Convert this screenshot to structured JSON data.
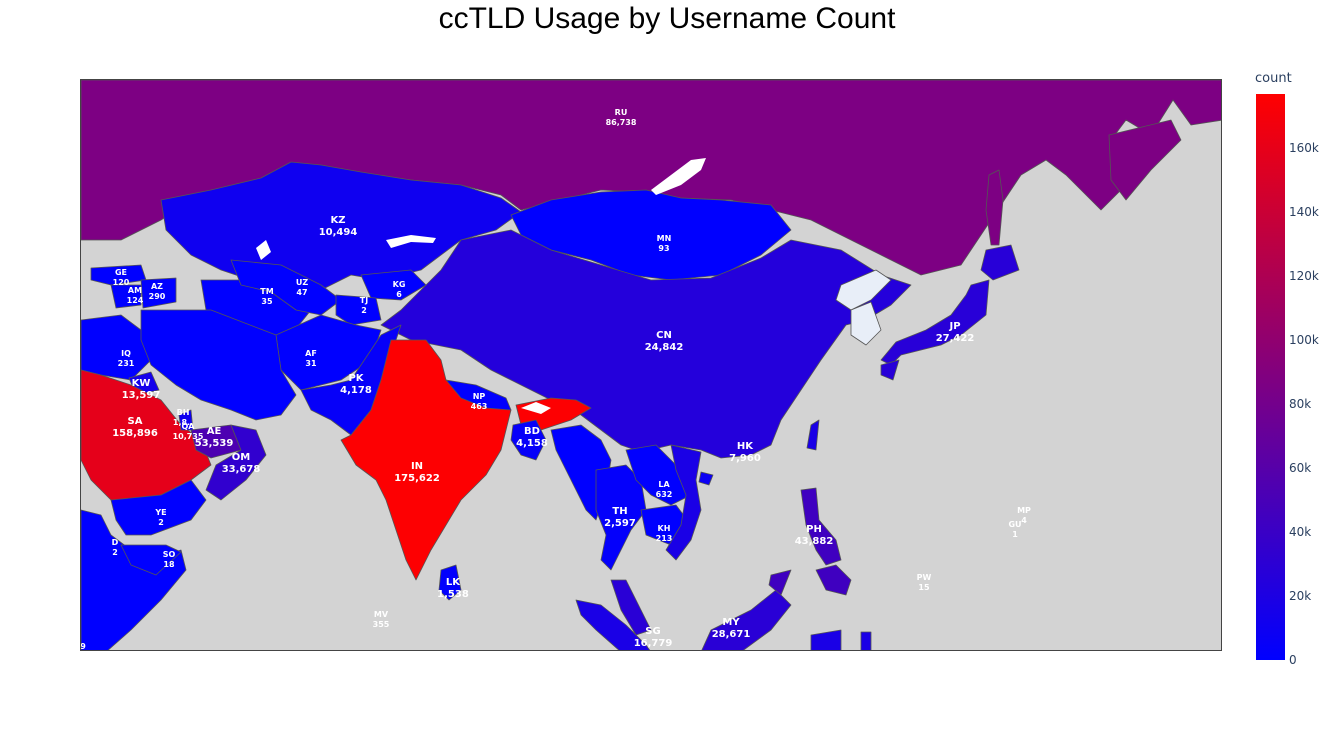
{
  "title": "ccTLD Usage by Username Count",
  "colorbar": {
    "title": "count",
    "ticks": [
      {
        "label": "160k",
        "value": 160000
      },
      {
        "label": "140k",
        "value": 140000
      },
      {
        "label": "120k",
        "value": 120000
      },
      {
        "label": "100k",
        "value": 100000
      },
      {
        "label": "80k",
        "value": 80000
      },
      {
        "label": "60k",
        "value": 60000
      },
      {
        "label": "40k",
        "value": 40000
      },
      {
        "label": "20k",
        "value": 20000
      },
      {
        "label": "0",
        "value": 0
      }
    ],
    "max": 177000,
    "colors": {
      "low": "#0000ff",
      "mid": "#800080",
      "high": "#ff0000"
    }
  },
  "map_colors": {
    "ocean": "#d3d3d3",
    "nodata": "#e8eef8",
    "border": "#555555"
  },
  "countries": [
    {
      "code": "RU",
      "count": "86,738",
      "value": 86738
    },
    {
      "code": "KZ",
      "count": "10,494",
      "value": 10494
    },
    {
      "code": "MN",
      "count": "93",
      "value": 93
    },
    {
      "code": "GE",
      "count": "120",
      "value": 120
    },
    {
      "code": "AM",
      "count": "124",
      "value": 124
    },
    {
      "code": "AZ",
      "count": "290",
      "value": 290
    },
    {
      "code": "TM",
      "count": "35",
      "value": 35
    },
    {
      "code": "UZ",
      "count": "47",
      "value": 47
    },
    {
      "code": "KG",
      "count": "6",
      "value": 6
    },
    {
      "code": "TJ",
      "count": "2",
      "value": 2
    },
    {
      "code": "CN",
      "count": "24,842",
      "value": 24842
    },
    {
      "code": "JP",
      "count": "27,422",
      "value": 27422
    },
    {
      "code": "IQ",
      "count": "231",
      "value": 231
    },
    {
      "code": "AF",
      "count": "31",
      "value": 31
    },
    {
      "code": "KW",
      "count": "13,597",
      "value": 13597
    },
    {
      "code": "PK",
      "count": "4,178",
      "value": 4178
    },
    {
      "code": "NP",
      "count": "463",
      "value": 463
    },
    {
      "code": "SA",
      "count": "158,896",
      "value": 158896
    },
    {
      "code": "BH",
      "count": "1,8..",
      "value": null
    },
    {
      "code": "QA",
      "count": "10,735",
      "value": 10735
    },
    {
      "code": "AE",
      "count": "53,539",
      "value": 53539
    },
    {
      "code": "BD",
      "count": "4,158",
      "value": 4158
    },
    {
      "code": "HK",
      "count": "7,960",
      "value": 7960
    },
    {
      "code": "OM",
      "count": "33,678",
      "value": 33678
    },
    {
      "code": "IN",
      "count": "175,622",
      "value": 175622
    },
    {
      "code": "LA",
      "count": "632",
      "value": 632
    },
    {
      "code": "TH",
      "count": "2,597",
      "value": 2597
    },
    {
      "code": "KH",
      "count": "213",
      "value": 213
    },
    {
      "code": "YE",
      "count": "2",
      "value": 2
    },
    {
      "code": "PH",
      "count": "43,882",
      "value": 43882
    },
    {
      "code": "MP",
      "count": "4",
      "value": 4
    },
    {
      "code": "GU",
      "count": "1",
      "value": 1
    },
    {
      "code": "D",
      "count": "2",
      "value": null
    },
    {
      "code": "SO",
      "count": "18",
      "value": 18
    },
    {
      "code": "LK",
      "count": "1,538",
      "value": 1538
    },
    {
      "code": "PW",
      "count": "15",
      "value": 15
    },
    {
      "code": "MV",
      "count": "355",
      "value": 355
    },
    {
      "code": "MY",
      "count": "28,671",
      "value": 28671
    },
    {
      "code": "SG",
      "count": "16,779",
      "value": 16779
    }
  ],
  "edge_label": "9"
}
